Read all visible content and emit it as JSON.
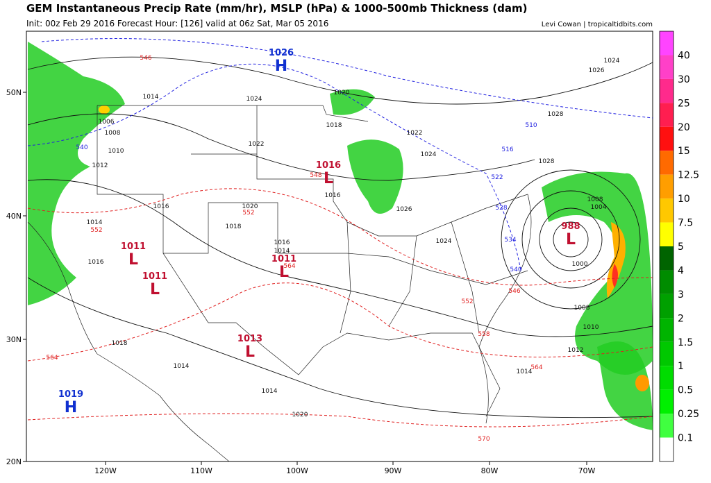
{
  "header": {
    "title": "GEM Instantaneous Precip Rate (mm/hr), MSLP (hPa) & 1000-500mb Thickness (dam)",
    "init": "Init: 00z Feb 29 2016   Forecast Hour: [126]   valid at 06z Sat, Mar 05 2016",
    "credit": "Levi Cowan | tropicaltidbits.com"
  },
  "map": {
    "lon_labels": [
      "120W",
      "110W",
      "100W",
      "90W",
      "80W",
      "70W"
    ],
    "lat_labels": [
      "50N",
      "40N",
      "30N",
      "20N"
    ],
    "centers": [
      {
        "value": "1026",
        "symbol": "H"
      },
      {
        "value": "1016",
        "symbol": "L"
      },
      {
        "value": "1011",
        "symbol": "L"
      },
      {
        "value": "1011",
        "symbol": "L"
      },
      {
        "value": "1011",
        "symbol": "L"
      },
      {
        "value": "1013",
        "symbol": "L"
      },
      {
        "value": "988",
        "symbol": "L"
      },
      {
        "value": "1019",
        "symbol": "H"
      }
    ],
    "isobar_labels": [
      "1014",
      "1006",
      "1008",
      "1010",
      "1012",
      "1024",
      "1020",
      "1018",
      "1022",
      "1022",
      "1024",
      "1016",
      "1020",
      "1018",
      "1016",
      "1026",
      "1024",
      "1016",
      "1014",
      "1014",
      "1016",
      "1018",
      "1014",
      "1014",
      "1020",
      "1008",
      "1004",
      "1000",
      "1008",
      "1010",
      "1012",
      "1014",
      "1028",
      "1028",
      "1026",
      "1024"
    ],
    "thickness_red": [
      "546",
      "548",
      "552",
      "552",
      "564",
      "546",
      "552",
      "558",
      "564",
      "564",
      "570"
    ],
    "thickness_blue": [
      "540",
      "510",
      "516",
      "522",
      "528",
      "534",
      "540"
    ]
  },
  "colorbar": {
    "labels": [
      "40",
      "30",
      "25",
      "20",
      "15",
      "12.5",
      "10",
      "7.5",
      "5",
      "4",
      "3",
      "2",
      "1.5",
      "1",
      "0.5",
      "0.25",
      "0.1"
    ],
    "colors": [
      "#ff44ff",
      "#ff40c8",
      "#ff2a8c",
      "#ff1e50",
      "#ff1010",
      "#ff6a00",
      "#ff9e00",
      "#ffc800",
      "#ffff00",
      "#006400",
      "#008c00",
      "#00a000",
      "#00b400",
      "#00c800",
      "#00dc00",
      "#00f000",
      "#40ff40",
      "#ffffff"
    ]
  }
}
